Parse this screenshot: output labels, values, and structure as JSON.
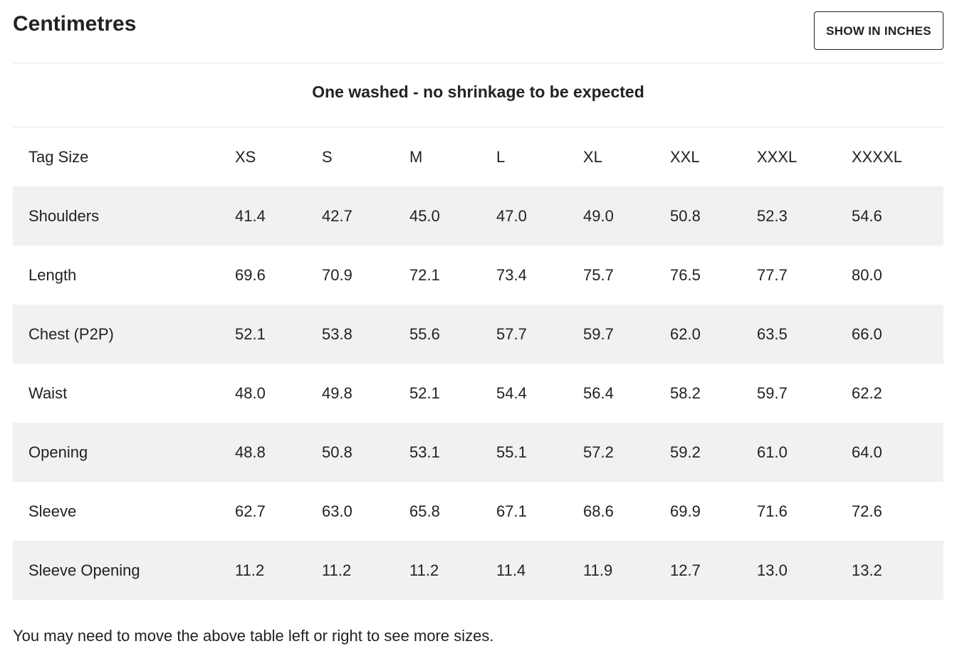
{
  "page_title": "Centimetres",
  "toggle_button_label": "SHOW IN INCHES",
  "subtitle": "One washed - no shrinkage to be expected",
  "table": {
    "headers": [
      "Tag Size",
      "XS",
      "S",
      "M",
      "L",
      "XL",
      "XXL",
      "XXXL",
      "XXXXL"
    ],
    "rows": [
      [
        "Shoulders",
        "41.4",
        "42.7",
        "45.0",
        "47.0",
        "49.0",
        "50.8",
        "52.3",
        "54.6"
      ],
      [
        "Length",
        "69.6",
        "70.9",
        "72.1",
        "73.4",
        "75.7",
        "76.5",
        "77.7",
        "80.0"
      ],
      [
        "Chest (P2P)",
        "52.1",
        "53.8",
        "55.6",
        "57.7",
        "59.7",
        "62.0",
        "63.5",
        "66.0"
      ],
      [
        "Waist",
        "48.0",
        "49.8",
        "52.1",
        "54.4",
        "56.4",
        "58.2",
        "59.7",
        "62.2"
      ],
      [
        "Opening",
        "48.8",
        "50.8",
        "53.1",
        "55.1",
        "57.2",
        "59.2",
        "61.0",
        "64.0"
      ],
      [
        "Sleeve",
        "62.7",
        "63.0",
        "65.8",
        "67.1",
        "68.6",
        "69.9",
        "71.6",
        "72.6"
      ],
      [
        "Sleeve Opening",
        "11.2",
        "11.2",
        "11.2",
        "11.4",
        "11.9",
        "12.7",
        "13.0",
        "13.2"
      ]
    ]
  },
  "footer_note": "You may need to move the above table left or right to see more sizes.",
  "colors": {
    "text": "#222222",
    "row_shade": "#f1f1f1",
    "divider": "#e6e6e6",
    "background": "#ffffff"
  }
}
